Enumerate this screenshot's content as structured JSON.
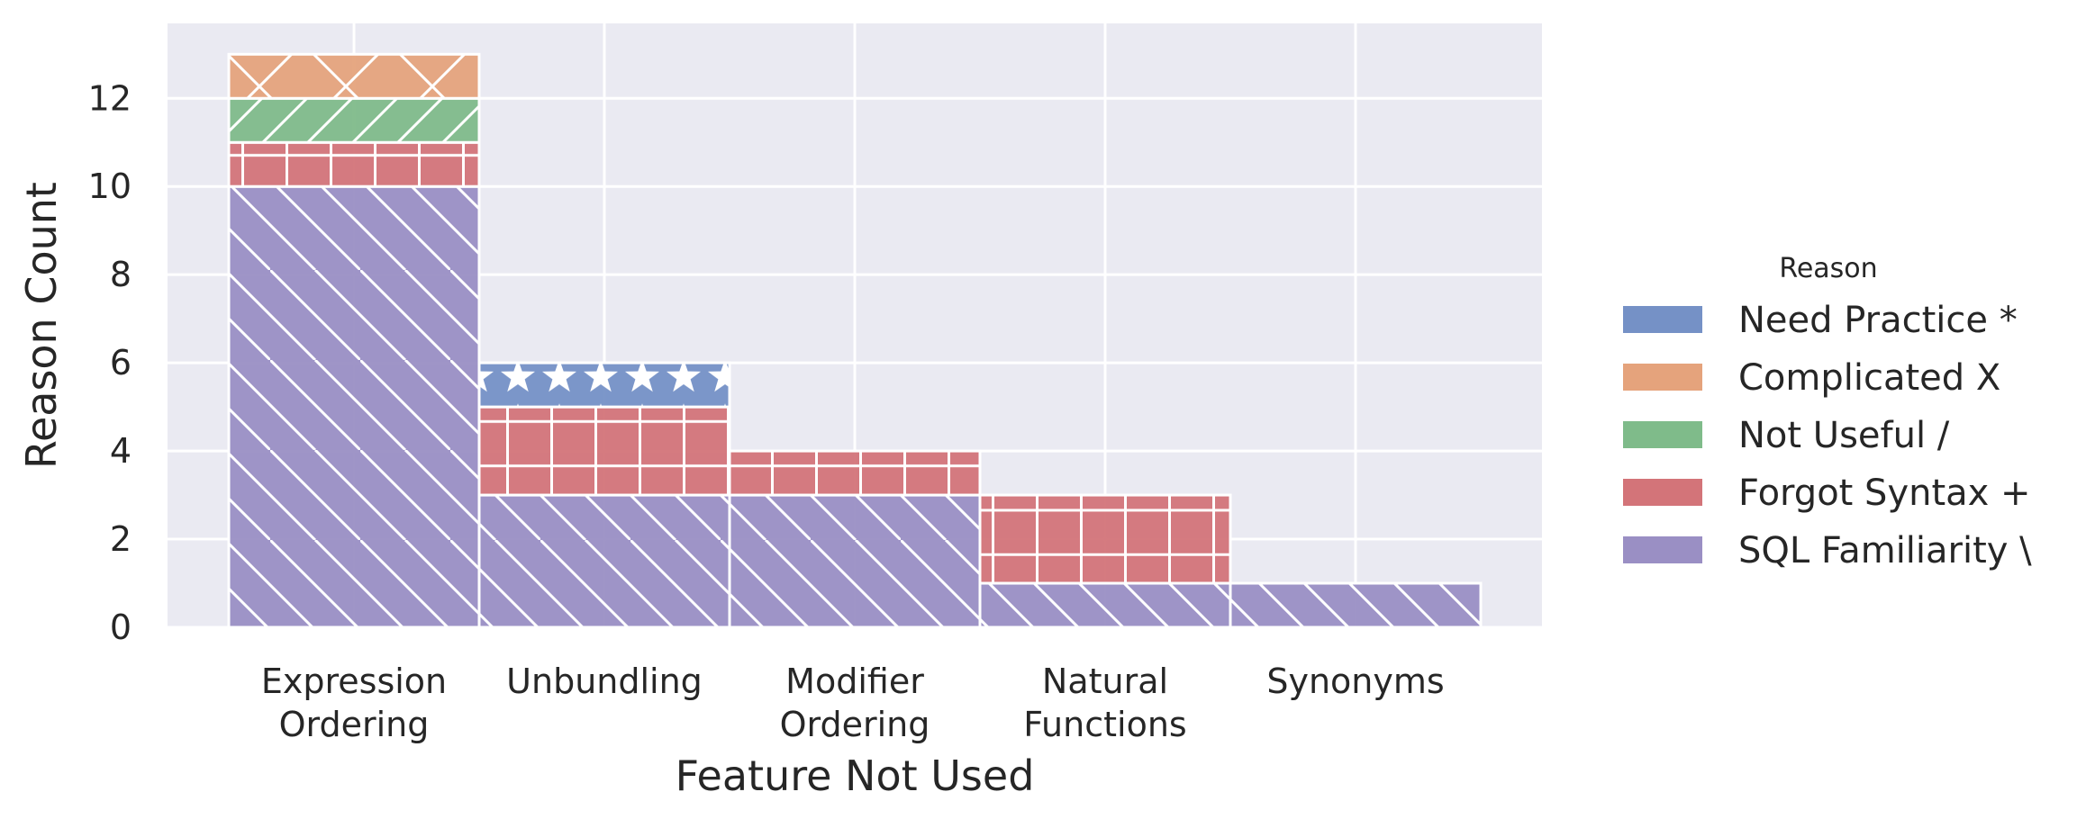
{
  "chart_data": {
    "type": "bar",
    "stacked": true,
    "xlabel": "Feature Not Used",
    "ylabel": "Reason Count",
    "categories": [
      [
        "Expression",
        "Ordering"
      ],
      [
        "Unbundling"
      ],
      [
        "Modifier",
        "Ordering"
      ],
      [
        "Natural",
        "Functions"
      ],
      [
        "Synonyms"
      ]
    ],
    "yticks": [
      0,
      2,
      4,
      6,
      8,
      10,
      12
    ],
    "ylim": [
      0,
      13.7
    ],
    "grid": true,
    "legend": {
      "title": "Reason",
      "placement": "right"
    },
    "series": [
      {
        "name": "Need Practice *",
        "color": "#7591c6",
        "hatch": "star",
        "values": [
          0,
          1,
          0,
          0,
          0
        ]
      },
      {
        "name": "Complicated X",
        "color": "#e5a37c",
        "hatch": "x",
        "values": [
          1,
          0,
          0,
          0,
          0
        ]
      },
      {
        "name": "Not Useful /",
        "color": "#7fbb8a",
        "hatch": "slash",
        "values": [
          1,
          0,
          0,
          0,
          0
        ]
      },
      {
        "name": "Forgot Syntax +",
        "color": "#d37479",
        "hatch": "plus",
        "values": [
          1,
          2,
          1,
          2,
          0
        ]
      },
      {
        "name": "SQL Familiarity \\",
        "color": "#9a8fc4",
        "hatch": "backslash",
        "values": [
          10,
          3,
          3,
          1,
          1
        ]
      }
    ],
    "stack_order_bottom_to_top": [
      "SQL Familiarity \\",
      "Forgot Syntax +",
      "Not Useful /",
      "Complicated X",
      "Need Practice *"
    ],
    "colors": {
      "plot_background": "#eaeaf2",
      "grid": "#ffffff",
      "text": "#262626"
    }
  }
}
